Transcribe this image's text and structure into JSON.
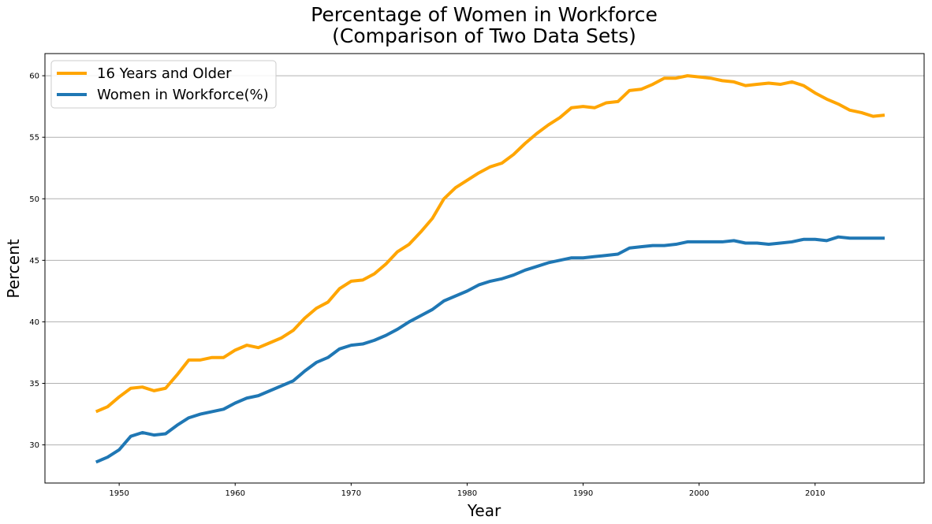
{
  "chart_data": {
    "type": "line",
    "title": [
      "Percentage of Women in Workforce",
      "(Comparison of Two Data Sets)"
    ],
    "xlabel": "Year",
    "ylabel": "Percent",
    "xlim": [
      1943.6,
      2019.4
    ],
    "ylim": [
      26.9,
      61.8
    ],
    "xticks": [
      1950,
      1960,
      1970,
      1980,
      1990,
      2000,
      2010
    ],
    "yticks": [
      30,
      35,
      40,
      45,
      50,
      55,
      60
    ],
    "grid": "horizontal",
    "legend_position": "top-left",
    "x": [
      1948,
      1949,
      1950,
      1951,
      1952,
      1953,
      1954,
      1955,
      1956,
      1957,
      1958,
      1959,
      1960,
      1961,
      1962,
      1963,
      1964,
      1965,
      1966,
      1967,
      1968,
      1969,
      1970,
      1971,
      1972,
      1973,
      1974,
      1975,
      1976,
      1977,
      1978,
      1979,
      1980,
      1981,
      1982,
      1983,
      1984,
      1985,
      1986,
      1987,
      1988,
      1989,
      1990,
      1991,
      1992,
      1993,
      1994,
      1995,
      1996,
      1997,
      1998,
      1999,
      2000,
      2001,
      2002,
      2003,
      2004,
      2005,
      2006,
      2007,
      2008,
      2009,
      2010,
      2011,
      2012,
      2013,
      2014,
      2015,
      2016
    ],
    "series": [
      {
        "name": "16 Years and Older",
        "color": "#FFA500",
        "values": [
          32.7,
          33.1,
          33.9,
          34.6,
          34.7,
          34.4,
          34.6,
          35.7,
          36.9,
          36.9,
          37.1,
          37.1,
          37.7,
          38.1,
          37.9,
          38.3,
          38.7,
          39.3,
          40.3,
          41.1,
          41.6,
          42.7,
          43.3,
          43.4,
          43.9,
          44.7,
          45.7,
          46.3,
          47.3,
          48.4,
          50.0,
          50.9,
          51.5,
          52.1,
          52.6,
          52.9,
          53.6,
          54.5,
          55.3,
          56.0,
          56.6,
          57.4,
          57.5,
          57.4,
          57.8,
          57.9,
          58.8,
          58.9,
          59.3,
          59.8,
          59.8,
          60.0,
          59.9,
          59.8,
          59.6,
          59.5,
          59.2,
          59.3,
          59.4,
          59.3,
          59.5,
          59.2,
          58.6,
          58.1,
          57.7,
          57.2,
          57.0,
          56.7,
          56.8
        ]
      },
      {
        "name": "Women in Workforce(%)",
        "color": "#1F77B4",
        "values": [
          28.6,
          29.0,
          29.6,
          30.7,
          31.0,
          30.8,
          30.9,
          31.6,
          32.2,
          32.5,
          32.7,
          32.9,
          33.4,
          33.8,
          34.0,
          34.4,
          34.8,
          35.2,
          36.0,
          36.7,
          37.1,
          37.8,
          38.1,
          38.2,
          38.5,
          38.9,
          39.4,
          40.0,
          40.5,
          41.0,
          41.7,
          42.1,
          42.5,
          43.0,
          43.3,
          43.5,
          43.8,
          44.2,
          44.5,
          44.8,
          45.0,
          45.2,
          45.2,
          45.3,
          45.4,
          45.5,
          46.0,
          46.1,
          46.2,
          46.2,
          46.3,
          46.5,
          46.5,
          46.5,
          46.5,
          46.6,
          46.4,
          46.4,
          46.3,
          46.4,
          46.5,
          46.7,
          46.7,
          46.6,
          46.9,
          46.8,
          46.8,
          46.8,
          46.8
        ]
      }
    ]
  }
}
